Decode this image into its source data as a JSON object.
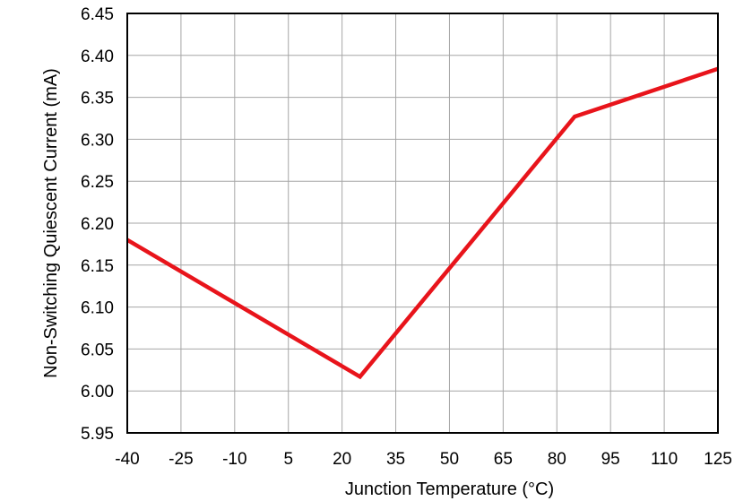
{
  "chart_data": {
    "type": "line",
    "title": "",
    "xlabel": "Junction Temperature (°C)",
    "ylabel": "Non-Switching Quiescent Current (mA)",
    "xlim": [
      -40,
      125
    ],
    "ylim": [
      5.95,
      6.45
    ],
    "x_ticks": [
      "-40",
      "-25",
      "-10",
      "5",
      "20",
      "35",
      "50",
      "65",
      "80",
      "95",
      "110",
      "125"
    ],
    "y_ticks": [
      "5.95",
      "6.00",
      "6.05",
      "6.10",
      "6.15",
      "6.20",
      "6.25",
      "6.30",
      "6.35",
      "6.40",
      "6.45"
    ],
    "grid": true,
    "series": [
      {
        "color": "#e8141b",
        "x": [
          -40,
          25,
          85,
          125
        ],
        "y": [
          6.18,
          6.017,
          6.327,
          6.384
        ]
      }
    ]
  }
}
